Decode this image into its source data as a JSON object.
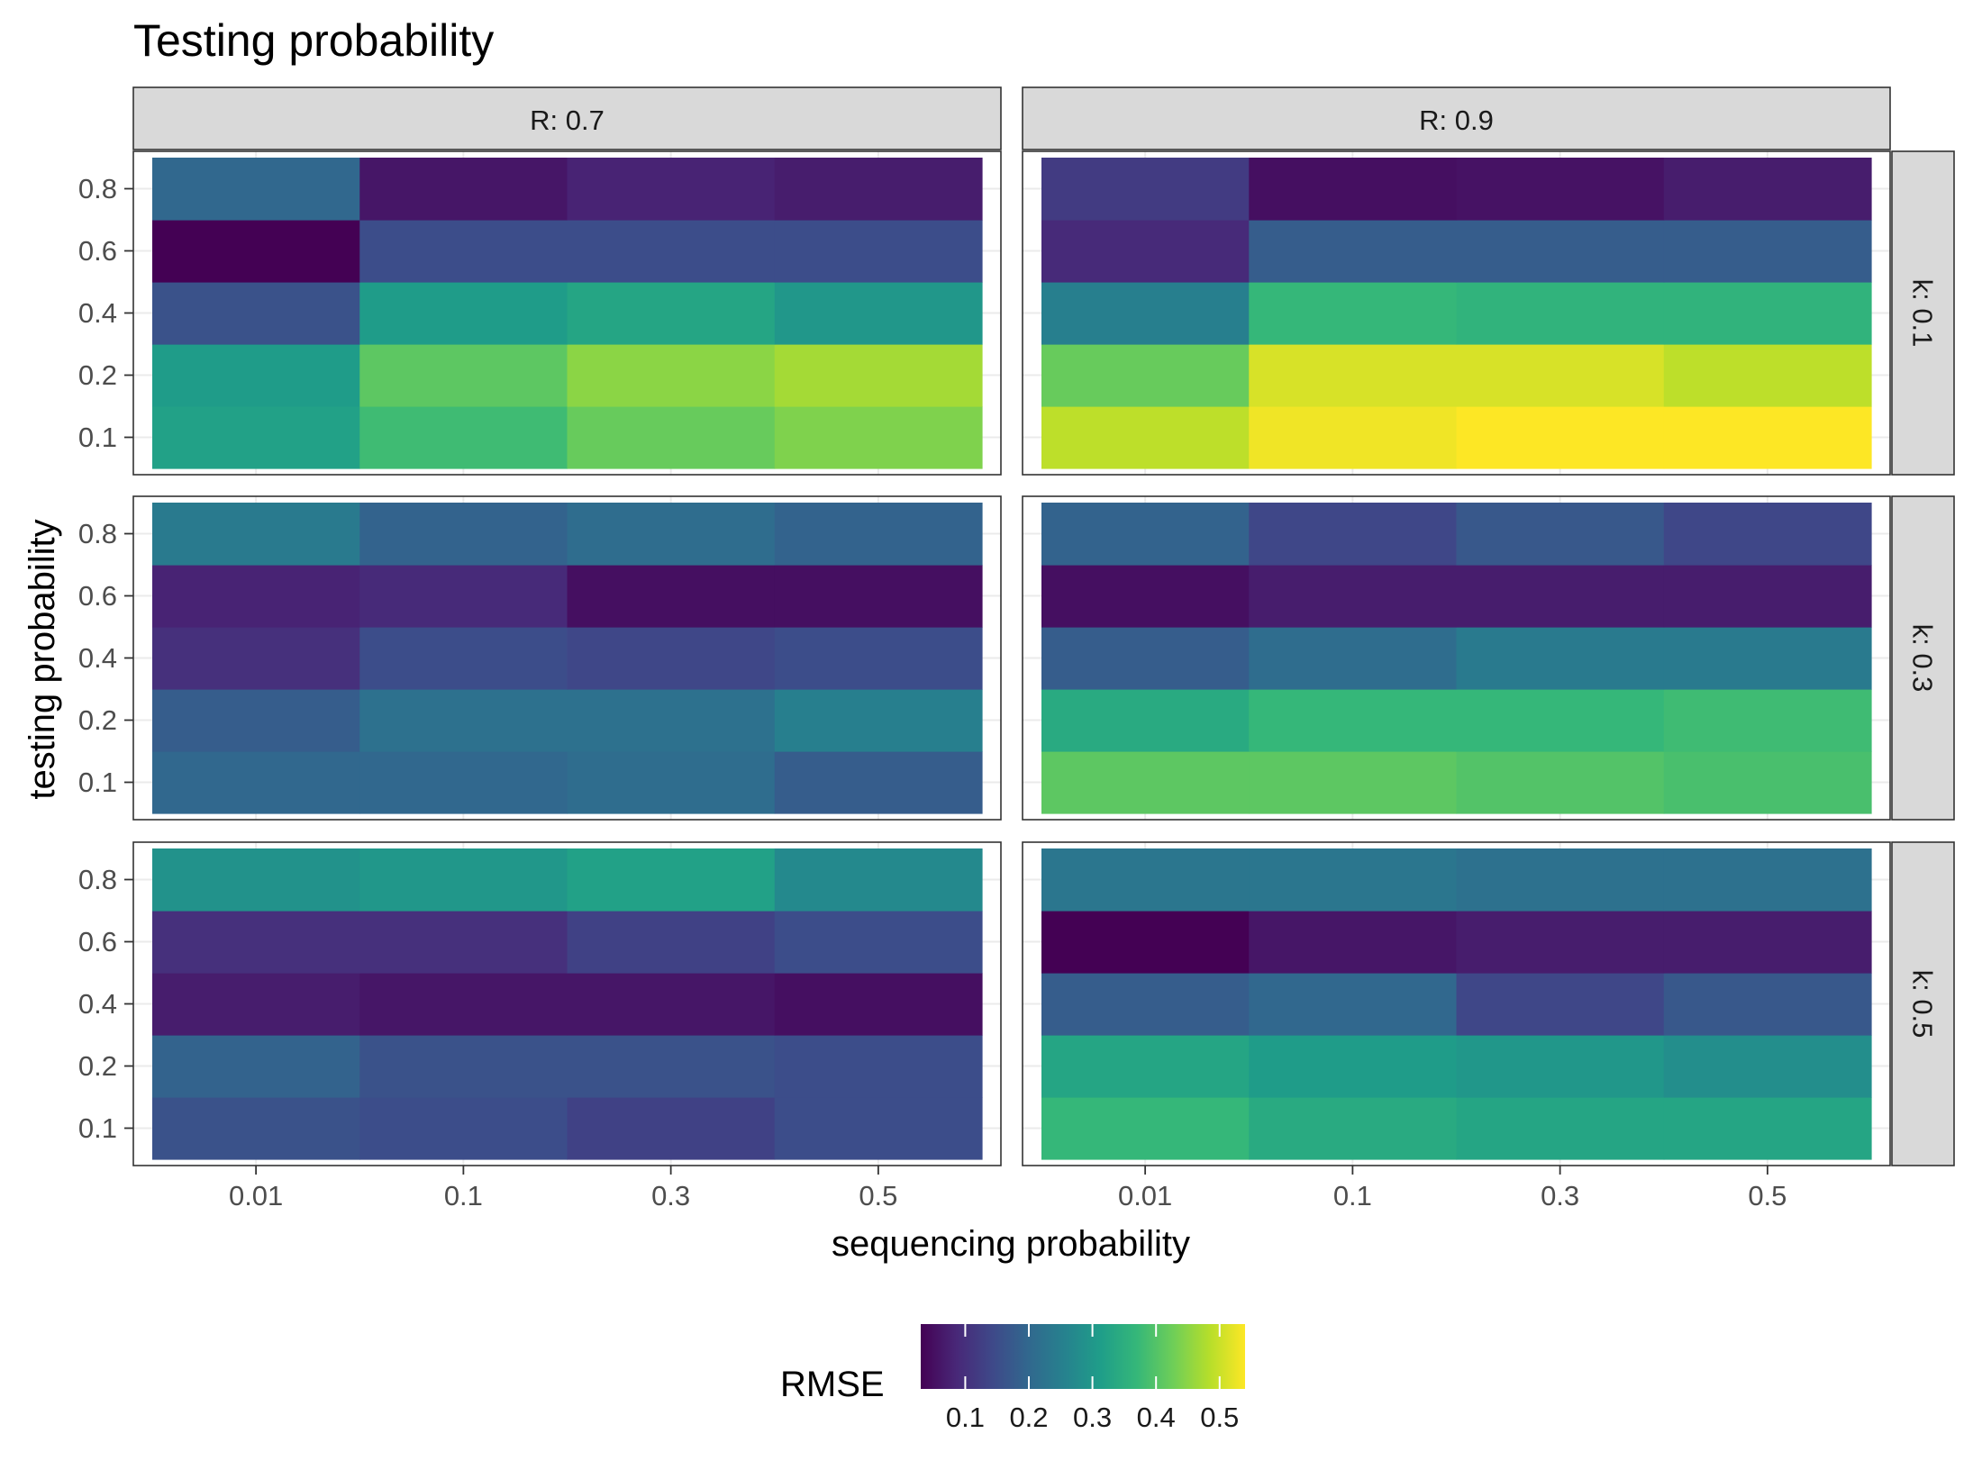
{
  "chart_data": {
    "type": "heatmap",
    "title": "Testing probability",
    "xlabel": "sequencing probability",
    "ylabel": "testing probability",
    "x_categories": [
      "0.01",
      "0.1",
      "0.3",
      "0.5"
    ],
    "y_categories": [
      "0.1",
      "0.2",
      "0.4",
      "0.6",
      "0.8"
    ],
    "facet_cols": {
      "name": "R",
      "labels": [
        "R: 0.7",
        "R: 0.9"
      ]
    },
    "facet_rows": {
      "name": "k",
      "labels": [
        "k: 0.1",
        "k: 0.3",
        "k: 0.5"
      ]
    },
    "grid": true,
    "legend": {
      "title": "RMSE",
      "position": "bottom",
      "range": [
        0.03,
        0.54
      ],
      "ticks": [
        0.1,
        0.2,
        0.3,
        0.4,
        0.5
      ],
      "tick_labels": [
        "0.1",
        "0.2",
        "0.3",
        "0.4",
        "0.5"
      ],
      "palette": "viridis",
      "colors": [
        "#440154",
        "#482878",
        "#3e4989",
        "#31688e",
        "#26828e",
        "#1f9e89",
        "#35b779",
        "#6ece58",
        "#b5de2b",
        "#fde725"
      ]
    },
    "panels": [
      {
        "row": "k: 0.1",
        "col": "R: 0.7",
        "values": {
          "0.8": [
            0.2,
            0.06,
            0.08,
            0.07
          ],
          "0.6": [
            0.03,
            0.15,
            0.15,
            0.15
          ],
          "0.4": [
            0.16,
            0.31,
            0.33,
            0.3
          ],
          "0.2": [
            0.31,
            0.41,
            0.45,
            0.47
          ],
          "0.1": [
            0.32,
            0.38,
            0.42,
            0.44
          ]
        }
      },
      {
        "row": "k: 0.1",
        "col": "R: 0.9",
        "values": {
          "0.8": [
            0.12,
            0.05,
            0.055,
            0.07
          ],
          "0.6": [
            0.09,
            0.18,
            0.18,
            0.18
          ],
          "0.4": [
            0.25,
            0.37,
            0.36,
            0.36
          ],
          "0.2": [
            0.42,
            0.51,
            0.51,
            0.49
          ],
          "0.1": [
            0.49,
            0.53,
            0.54,
            0.54
          ]
        }
      },
      {
        "row": "k: 0.3",
        "col": "R: 0.7",
        "values": {
          "0.8": [
            0.24,
            0.19,
            0.21,
            0.19
          ],
          "0.6": [
            0.08,
            0.09,
            0.05,
            0.05
          ],
          "0.4": [
            0.1,
            0.15,
            0.14,
            0.15
          ],
          "0.2": [
            0.18,
            0.22,
            0.22,
            0.25
          ],
          "0.1": [
            0.2,
            0.2,
            0.21,
            0.18
          ]
        }
      },
      {
        "row": "k: 0.3",
        "col": "R: 0.9",
        "values": {
          "0.8": [
            0.19,
            0.14,
            0.17,
            0.14
          ],
          "0.6": [
            0.05,
            0.07,
            0.07,
            0.07
          ],
          "0.4": [
            0.18,
            0.21,
            0.24,
            0.24
          ],
          "0.2": [
            0.34,
            0.37,
            0.37,
            0.38
          ],
          "0.1": [
            0.41,
            0.41,
            0.4,
            0.39
          ]
        }
      },
      {
        "row": "k: 0.5",
        "col": "R: 0.7",
        "values": {
          "0.8": [
            0.29,
            0.3,
            0.32,
            0.27
          ],
          "0.6": [
            0.1,
            0.1,
            0.13,
            0.15
          ],
          "0.4": [
            0.07,
            0.06,
            0.06,
            0.05
          ],
          "0.2": [
            0.19,
            0.16,
            0.16,
            0.15
          ],
          "0.1": [
            0.16,
            0.15,
            0.13,
            0.15
          ]
        }
      },
      {
        "row": "k: 0.5",
        "col": "R: 0.9",
        "values": {
          "0.8": [
            0.23,
            0.23,
            0.22,
            0.22
          ],
          "0.6": [
            0.03,
            0.06,
            0.07,
            0.07
          ],
          "0.4": [
            0.18,
            0.2,
            0.14,
            0.17
          ],
          "0.2": [
            0.33,
            0.31,
            0.3,
            0.28
          ],
          "0.1": [
            0.37,
            0.34,
            0.33,
            0.33
          ]
        }
      }
    ]
  }
}
